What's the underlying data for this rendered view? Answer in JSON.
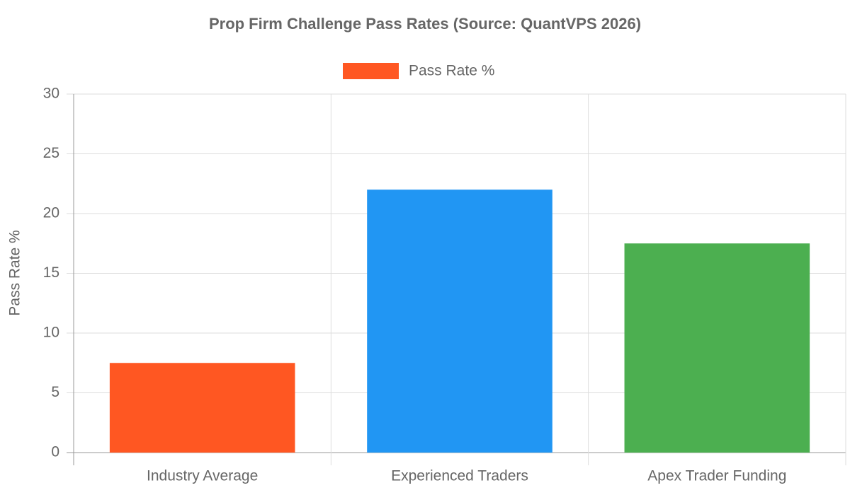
{
  "chart_data": {
    "type": "bar",
    "title": "Prop Firm Challenge Pass Rates (Source: QuantVPS 2026)",
    "y_label": "Pass Rate %",
    "categories": [
      "Industry Average",
      "Experienced Traders",
      "Apex Trader Funding"
    ],
    "series": [
      {
        "name": "Pass Rate %",
        "colors": [
          "#FF5722",
          "#2196F3",
          "#4CAF50"
        ],
        "values": [
          7.5,
          22,
          17.5
        ]
      }
    ],
    "ylim": [
      0,
      30
    ],
    "yticks": [
      0,
      5,
      10,
      15,
      20,
      25,
      30
    ],
    "grid": true,
    "legend": "top"
  }
}
